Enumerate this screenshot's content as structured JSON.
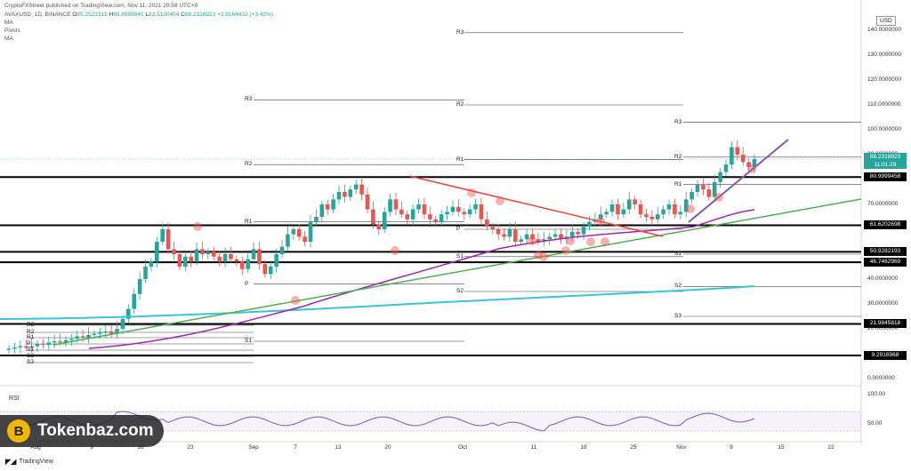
{
  "header": {
    "publisher": "CryptoFXStreet published on TradingView.com, Nov 11, 2021 20:58 UTC+8",
    "symbol": "AVAXUSD, 1D, BINANCE",
    "ohlc": [
      {
        "label": "O",
        "value": "85.2521315"
      },
      {
        "label": "H",
        "value": "89.8999840"
      },
      {
        "label": "L",
        "value": "83.5100404"
      },
      {
        "label": "C",
        "value": "88.2318923"
      }
    ],
    "change": "+2.9164432 (+3.42%)",
    "indicators": [
      "MA",
      "Pivots",
      "MA"
    ]
  },
  "currency_button": "USD",
  "y_axis": [
    {
      "label": "140.0000000",
      "value": 140
    },
    {
      "label": "130.0000000",
      "value": 130
    },
    {
      "label": "120.0000000",
      "value": 120
    },
    {
      "label": "110.0000000",
      "value": 110
    },
    {
      "label": "100.0000000",
      "value": 100
    },
    {
      "label": "90.0000000",
      "value": 90
    },
    {
      "label": "70.0000000",
      "value": 70
    },
    {
      "label": "40.0000000",
      "value": 40
    },
    {
      "label": "30.0000000",
      "value": 30
    },
    {
      "label": "20.0000000",
      "value": 20
    },
    {
      "label": "0.0000000",
      "value": 0
    }
  ],
  "last_price": {
    "value": "88.2318923",
    "countdown": "11:01:29"
  },
  "levels": [
    {
      "label": "80.9999458",
      "value": 81.0
    },
    {
      "label": "61.6202698",
      "value": 61.62
    },
    {
      "label": "50.9282193",
      "value": 50.93
    },
    {
      "label": "46.7462969",
      "value": 46.75
    },
    {
      "label": "21.9845818",
      "value": 21.98
    },
    {
      "label": "9.2916968",
      "value": 9.29
    }
  ],
  "x_axis": [
    "Aug",
    "9",
    "16",
    "23",
    "Sep",
    "7",
    "13",
    "20",
    "Oct",
    "11",
    "18",
    "25",
    "Nov",
    "8",
    "15",
    "22"
  ],
  "rsi": {
    "label": "RSI",
    "ticks": [
      "100.00",
      "50.00"
    ]
  },
  "pivot_labels": {
    "aug": [
      "R3",
      "R2",
      "R1",
      "P",
      "S1",
      "S2",
      "S3"
    ],
    "sep": [
      "R3",
      "R2",
      "R1",
      "P",
      "S1"
    ],
    "oct": [
      "R3",
      "R2",
      "R1",
      "P",
      "S1",
      "S2"
    ],
    "nov": [
      "R3",
      "R2",
      "R1",
      "S1",
      "S2",
      "S3"
    ]
  },
  "watermark": "Tokenbaz.com",
  "watermark_logo": "B",
  "footer": "TradingView",
  "colors": {
    "up": "#26a69a",
    "down": "#ef5350",
    "ma_long": "#3fc1d9",
    "ma_short": "#9c27b0",
    "trend_green": "#4caf50",
    "trend_red": "#f44336",
    "trend_purple": "#7e57c2"
  }
}
